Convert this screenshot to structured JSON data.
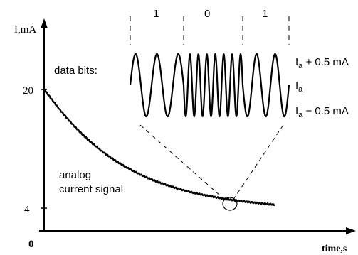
{
  "axes": {
    "y_label": "I,mA",
    "x_label": "time,s",
    "origin_label": "0",
    "y_ticks": [
      "20",
      "4"
    ]
  },
  "labels": {
    "data_bits": "data bits:",
    "analog_line1": "analog",
    "analog_line2": "current signal"
  },
  "bits": [
    "1",
    "0",
    "1"
  ],
  "levels": {
    "upper_base": "I",
    "upper_sub": "a",
    "upper_suffix": " + 0.5 mA",
    "mid_base": "I",
    "mid_sub": "a",
    "lower_base": "I",
    "lower_sub": "a",
    "lower_suffix": " − 0.5 mA"
  },
  "signal": {
    "curve_start_mA": 20,
    "curve_end_mA": 4,
    "bit_pattern": [
      1,
      0,
      1
    ],
    "cycles_per_bit": [
      2.5,
      7,
      2.5
    ]
  }
}
